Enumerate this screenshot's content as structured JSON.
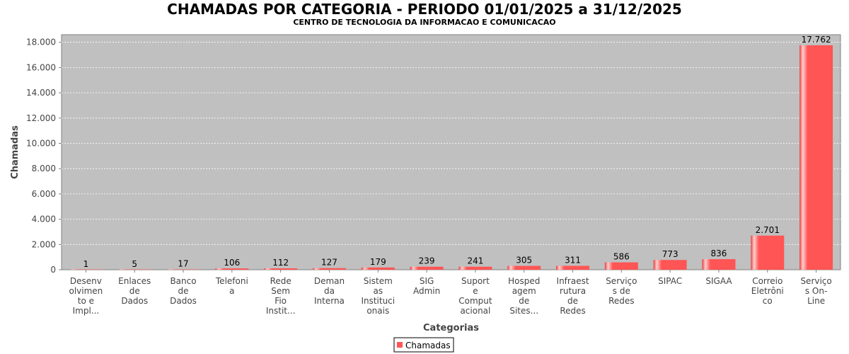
{
  "chart_data": {
    "type": "bar",
    "title": "CHAMADAS POR CATEGORIA - PERIODO 01/01/2025 a 31/12/2025",
    "subtitle": "CENTRO DE TECNOLOGIA DA INFORMACAO E COMUNICACAO",
    "xlabel": "Categorias",
    "ylabel": "Chamadas",
    "ylim": [
      0,
      18600
    ],
    "yticks": [
      0,
      2000,
      4000,
      6000,
      8000,
      10000,
      12000,
      14000,
      16000,
      18000
    ],
    "ytick_labels": [
      "0",
      "2.000",
      "4.000",
      "6.000",
      "8.000",
      "10.000",
      "12.000",
      "14.000",
      "16.000",
      "18.000"
    ],
    "grid": true,
    "legend_position": "bottom-center",
    "categories": [
      [
        "Desenv",
        "olvimen",
        "to e",
        "Impl..."
      ],
      [
        "Enlaces",
        "de",
        "Dados"
      ],
      [
        "Banco",
        "de",
        "Dados"
      ],
      [
        "Telefoni",
        "a"
      ],
      [
        "Rede",
        "Sem",
        "Fio",
        "Instit..."
      ],
      [
        "Deman",
        "da",
        "Interna"
      ],
      [
        "Sistem",
        "as",
        "Instituci",
        "onais"
      ],
      [
        "SIG",
        "Admin"
      ],
      [
        "Suport",
        "e",
        "Comput",
        "acional"
      ],
      [
        "Hosped",
        "agem",
        "de",
        "Sites..."
      ],
      [
        "Infraest",
        "rutura",
        "de",
        "Redes"
      ],
      [
        "Serviço",
        "s de",
        "Redes"
      ],
      [
        "SIPAC"
      ],
      [
        "SIGAA"
      ],
      [
        "Correio",
        "Eletrôni",
        "co"
      ],
      [
        "Serviço",
        "s On-",
        "Line"
      ]
    ],
    "series": [
      {
        "name": "Chamadas",
        "values": [
          1,
          5,
          17,
          106,
          112,
          127,
          179,
          239,
          241,
          305,
          311,
          586,
          773,
          836,
          2701,
          17762
        ],
        "value_labels": [
          "1",
          "5",
          "17",
          "106",
          "112",
          "127",
          "179",
          "239",
          "241",
          "305",
          "311",
          "586",
          "773",
          "836",
          "2.701",
          "17.762"
        ]
      }
    ],
    "colors": {
      "bar": "#ff5555",
      "bar_highlight": "#ffd0d0",
      "bar_dark": "#e83f3f",
      "plot_background": "#c0c0c0",
      "grid": "#ffffff"
    }
  }
}
